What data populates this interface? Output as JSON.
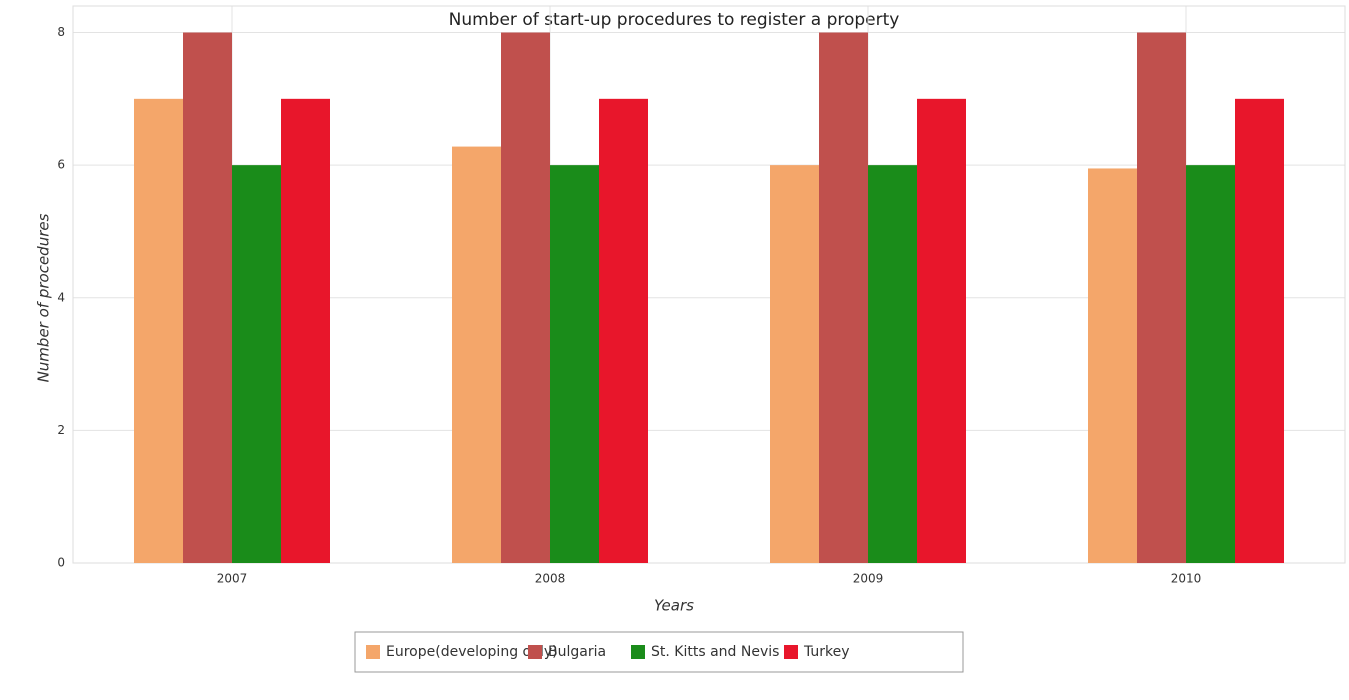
{
  "chart_data": {
    "type": "bar",
    "title": "Number of start-up procedures to register a property",
    "x_label": "Years",
    "y_label": "Number of procedures",
    "categories": [
      "2007",
      "2008",
      "2009",
      "2010"
    ],
    "series": [
      {
        "name": "Europe(developing only)",
        "color": "#f4a66a",
        "values": [
          7,
          6.28,
          6,
          5.95
        ]
      },
      {
        "name": "Bulgaria",
        "color": "#c0504d",
        "values": [
          8,
          8,
          8,
          8
        ]
      },
      {
        "name": "St. Kitts and Nevis",
        "color": "#1a8c1a",
        "values": [
          6,
          6,
          6,
          6
        ]
      },
      {
        "name": "Turkey",
        "color": "#e8162b",
        "values": [
          7,
          7,
          7,
          7
        ]
      }
    ],
    "ylim": [
      0,
      8.4
    ],
    "yticks": [
      0,
      2,
      4,
      6,
      8
    ],
    "grid": true
  }
}
